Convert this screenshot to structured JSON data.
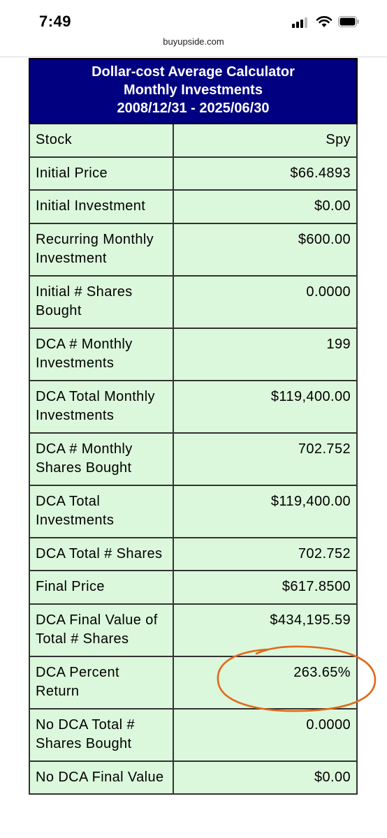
{
  "status_bar": {
    "time": "7:49"
  },
  "browser": {
    "url": "buyupside.com"
  },
  "calculator": {
    "title_line1": "Dollar-cost Average Calculator",
    "title_line2": "Monthly Investments",
    "title_line3": "2008/12/31 - 2025/06/30",
    "rows": [
      {
        "label": "Stock",
        "value": "Spy"
      },
      {
        "label": "Initial Price",
        "value": "$66.4893"
      },
      {
        "label": "Initial Investment",
        "value": "$0.00"
      },
      {
        "label": "Recurring Monthly Investment",
        "value": "$600.00"
      },
      {
        "label": "Initial # Shares Bought",
        "value": "0.0000"
      },
      {
        "label": "DCA # Monthly Investments",
        "value": "199"
      },
      {
        "label": "DCA Total Monthly Investments",
        "value": "$119,400.00"
      },
      {
        "label": "DCA # Monthly Shares Bought",
        "value": "702.752"
      },
      {
        "label": "DCA Total Investments",
        "value": "$119,400.00"
      },
      {
        "label": "DCA Total # Shares",
        "value": "702.752"
      },
      {
        "label": "Final Price",
        "value": "$617.8500"
      },
      {
        "label": "DCA Final Value of Total # Shares",
        "value": "$434,195.59"
      },
      {
        "label": "DCA Percent Return",
        "value": "263.65%"
      },
      {
        "label": "No DCA Total # Shares Bought",
        "value": "0.0000"
      },
      {
        "label": "No DCA Final Value",
        "value": "$0.00"
      }
    ]
  },
  "annotation": {
    "color": "#e06a1b"
  }
}
